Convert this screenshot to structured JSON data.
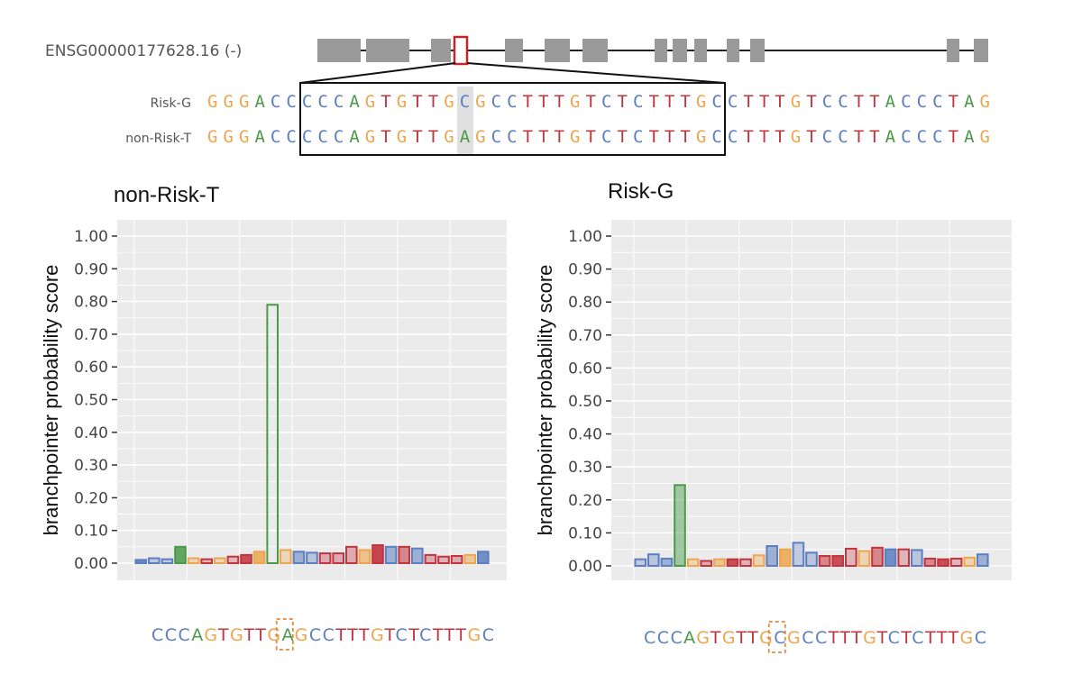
{
  "gene": {
    "id_label": "ENSG00000177628.16 (-)"
  },
  "alignment": {
    "rows": [
      {
        "label": "Risk-G",
        "seq": "GGGACCCCCAGTGTTGCGCCTTTGTCTCTTTGCCTTTGTCCTTACCCTAG"
      },
      {
        "label": "non-Risk-T",
        "seq": "GGGACCCCCAGTGTTGAGCCTTTGTCTCTTTGCCTTTGTCCTTACCCTAG"
      }
    ],
    "variant_index": 16
  },
  "colors": {
    "A": "#4a9a4a",
    "C": "#5b7fc0",
    "G": "#eea64e",
    "T": "#c2343e",
    "panel_bg": "#ebebeb",
    "grid": "#ffffff",
    "exon": "#9a9a9a",
    "highlight_exon": "#c0272d",
    "variant_box": "#e08a3c"
  },
  "chart_data": [
    {
      "type": "bar",
      "title": "non-Risk-T",
      "xlabel": "",
      "ylabel": "branchpointer probability score",
      "ylim": [
        0,
        1
      ],
      "yticks": [
        "0.00",
        "0.10",
        "0.20",
        "0.30",
        "0.40",
        "0.50",
        "0.60",
        "0.70",
        "0.80",
        "0.90",
        "1.00"
      ],
      "sequence": "CCCAGTGTTGAGCCTTTGTCTCTTTGC",
      "variant_index": 10,
      "values": [
        0.01,
        0.015,
        0.012,
        0.05,
        0.015,
        0.012,
        0.015,
        0.02,
        0.025,
        0.035,
        0.79,
        0.04,
        0.035,
        0.032,
        0.03,
        0.03,
        0.05,
        0.04,
        0.055,
        0.05,
        0.05,
        0.045,
        0.025,
        0.02,
        0.022,
        0.025,
        0.035
      ],
      "fill_alpha": [
        0.9,
        0.3,
        0.3,
        0.85,
        0.3,
        0.3,
        0.3,
        0.3,
        0.85,
        0.85,
        0.0,
        0.3,
        0.55,
        0.35,
        0.35,
        0.35,
        0.35,
        0.6,
        0.9,
        0.55,
        0.55,
        0.55,
        0.35,
        0.3,
        0.35,
        0.5,
        0.85
      ]
    },
    {
      "type": "bar",
      "title": "Risk-G",
      "xlabel": "",
      "ylabel": "branchpointer probability score",
      "ylim": [
        0,
        1
      ],
      "yticks": [
        "0.00",
        "0.10",
        "0.20",
        "0.30",
        "0.40",
        "0.50",
        "0.60",
        "0.70",
        "0.80",
        "0.90",
        "1.00"
      ],
      "sequence": "CCCAGTGTTGCGCCTTTGTCTCTTTGC",
      "variant_index": 10,
      "values": [
        0.02,
        0.035,
        0.022,
        0.245,
        0.02,
        0.015,
        0.02,
        0.02,
        0.02,
        0.032,
        0.06,
        0.05,
        0.07,
        0.04,
        0.03,
        0.03,
        0.052,
        0.045,
        0.055,
        0.05,
        0.05,
        0.048,
        0.022,
        0.02,
        0.022,
        0.025,
        0.035
      ]
    }
  ]
}
